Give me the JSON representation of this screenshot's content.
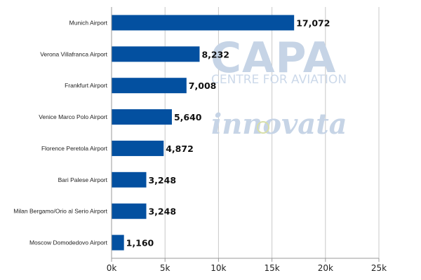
{
  "watermarks": {
    "capa": "CAPA",
    "capa_sub": "CENTRE FOR AVIATION",
    "innovata": "innovata"
  },
  "colors": {
    "bar": "#0350a0",
    "grid": "#c8c8c8",
    "axis": "#999999",
    "watermark": "#c6d4e6"
  },
  "chart_data": {
    "type": "bar",
    "orientation": "horizontal",
    "title": "",
    "xlabel": "",
    "ylabel": "",
    "categories": [
      "Munich Airport",
      "Verona Villafranca Airport",
      "Frankfurt Airport",
      "Venice Marco Polo Airport",
      "Florence Peretola Airport",
      "Bari Palese Airport",
      "Milan Bergamo/Orio al Serio Airport",
      "Moscow Domodedovo Airport"
    ],
    "values": [
      17072,
      8232,
      7008,
      5640,
      4872,
      3248,
      3248,
      1160
    ],
    "data_labels": [
      "17,072",
      "8,232",
      "7,008",
      "5,640",
      "4,872",
      "3,248",
      "3,248",
      "1,160"
    ],
    "xlim": [
      0,
      25000
    ],
    "x_ticks": [
      0,
      5000,
      10000,
      15000,
      20000,
      25000
    ],
    "x_tick_labels": [
      "0k",
      "5k",
      "10k",
      "15k",
      "20k",
      "25k"
    ],
    "grid": true,
    "legend": "none"
  }
}
